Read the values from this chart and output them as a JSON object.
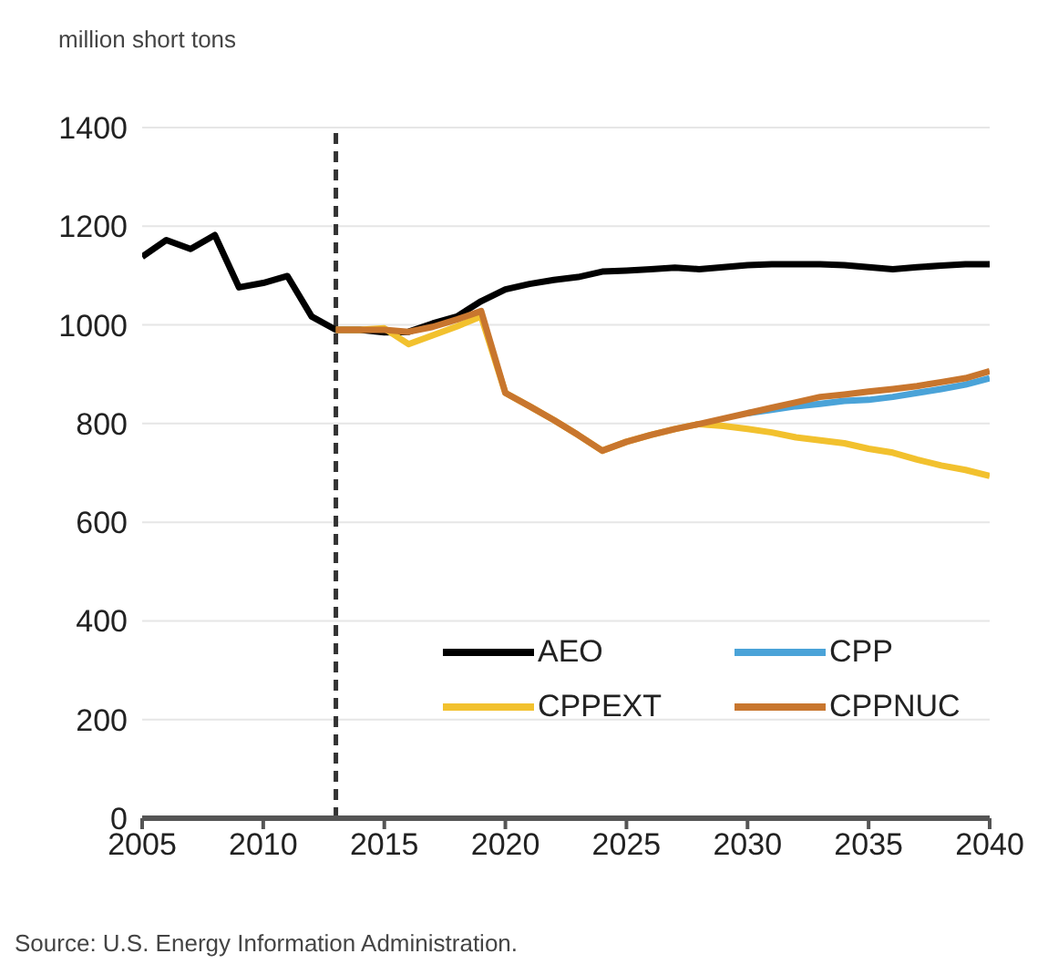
{
  "chart_data": {
    "type": "line",
    "ylabel": "million short tons",
    "xlim": [
      2005,
      2040
    ],
    "xticks": [
      2005,
      2010,
      2015,
      2020,
      2025,
      2030,
      2035,
      2040
    ],
    "ylim": [
      0,
      1400
    ],
    "yticks": [
      0,
      200,
      400,
      600,
      800,
      1000,
      1200,
      1400
    ],
    "grid": "y",
    "legend": "bottom right",
    "line_style": "solid",
    "marker": "none",
    "ref_lines": [
      {
        "axis": "x",
        "value": 2013,
        "label": null,
        "color": "#333333",
        "line_style": "dashed"
      }
    ],
    "annotations": [
      "Source: U.S. Energy Information Administration."
    ],
    "series": [
      {
        "name": "AEO",
        "color": "#000000",
        "x": [
          2005,
          2006,
          2007,
          2008,
          2009,
          2010,
          2011,
          2012,
          2013,
          2014,
          2015,
          2016,
          2017,
          2018,
          2019,
          2020,
          2021,
          2022,
          2023,
          2024,
          2025,
          2026,
          2027,
          2028,
          2029,
          2030,
          2031,
          2032,
          2033,
          2034,
          2035,
          2036,
          2037,
          2038,
          2039,
          2040
        ],
        "values": [
          1138,
          1172,
          1154,
          1182,
          1076,
          1085,
          1099,
          1017,
          990,
          990,
          985,
          986,
          1003,
          1017,
          1048,
          1072,
          1083,
          1091,
          1097,
          1108,
          1110,
          1113,
          1116,
          1113,
          1117,
          1121,
          1123,
          1123,
          1123,
          1121,
          1117,
          1113,
          1117,
          1120,
          1123,
          1123
        ]
      },
      {
        "name": "CPP",
        "color": "#4aa3d8",
        "x": [
          2030,
          2031,
          2032,
          2033,
          2034,
          2035,
          2036,
          2037,
          2038,
          2039,
          2040
        ],
        "values": [
          821,
          828,
          835,
          840,
          846,
          848,
          854,
          862,
          870,
          879,
          892
        ]
      },
      {
        "name": "CPPEXT",
        "color": "#f2c12e",
        "x": [
          2013,
          2014,
          2015,
          2016,
          2017,
          2018,
          2019,
          2020,
          2021,
          2022,
          2023,
          2024,
          2025,
          2026,
          2027,
          2028,
          2029,
          2030,
          2031,
          2032,
          2033,
          2034,
          2035,
          2036,
          2037,
          2038,
          2039,
          2040
        ],
        "values": [
          990,
          990,
          993,
          961,
          979,
          997,
          1017,
          862,
          835,
          807,
          777,
          745,
          763,
          777,
          789,
          799,
          795,
          789,
          782,
          772,
          766,
          760,
          749,
          741,
          727,
          715,
          706,
          694
        ]
      },
      {
        "name": "CPPNUC",
        "color": "#c8762e",
        "x": [
          2013,
          2014,
          2015,
          2016,
          2017,
          2018,
          2019,
          2020,
          2021,
          2022,
          2023,
          2024,
          2025,
          2026,
          2027,
          2028,
          2029,
          2030,
          2031,
          2032,
          2033,
          2034,
          2035,
          2036,
          2037,
          2038,
          2039,
          2040
        ],
        "values": [
          990,
          990,
          990,
          986,
          996,
          1011,
          1028,
          862,
          835,
          807,
          777,
          745,
          763,
          777,
          789,
          799,
          810,
          821,
          832,
          843,
          854,
          859,
          865,
          870,
          876,
          884,
          892,
          906
        ]
      }
    ]
  }
}
